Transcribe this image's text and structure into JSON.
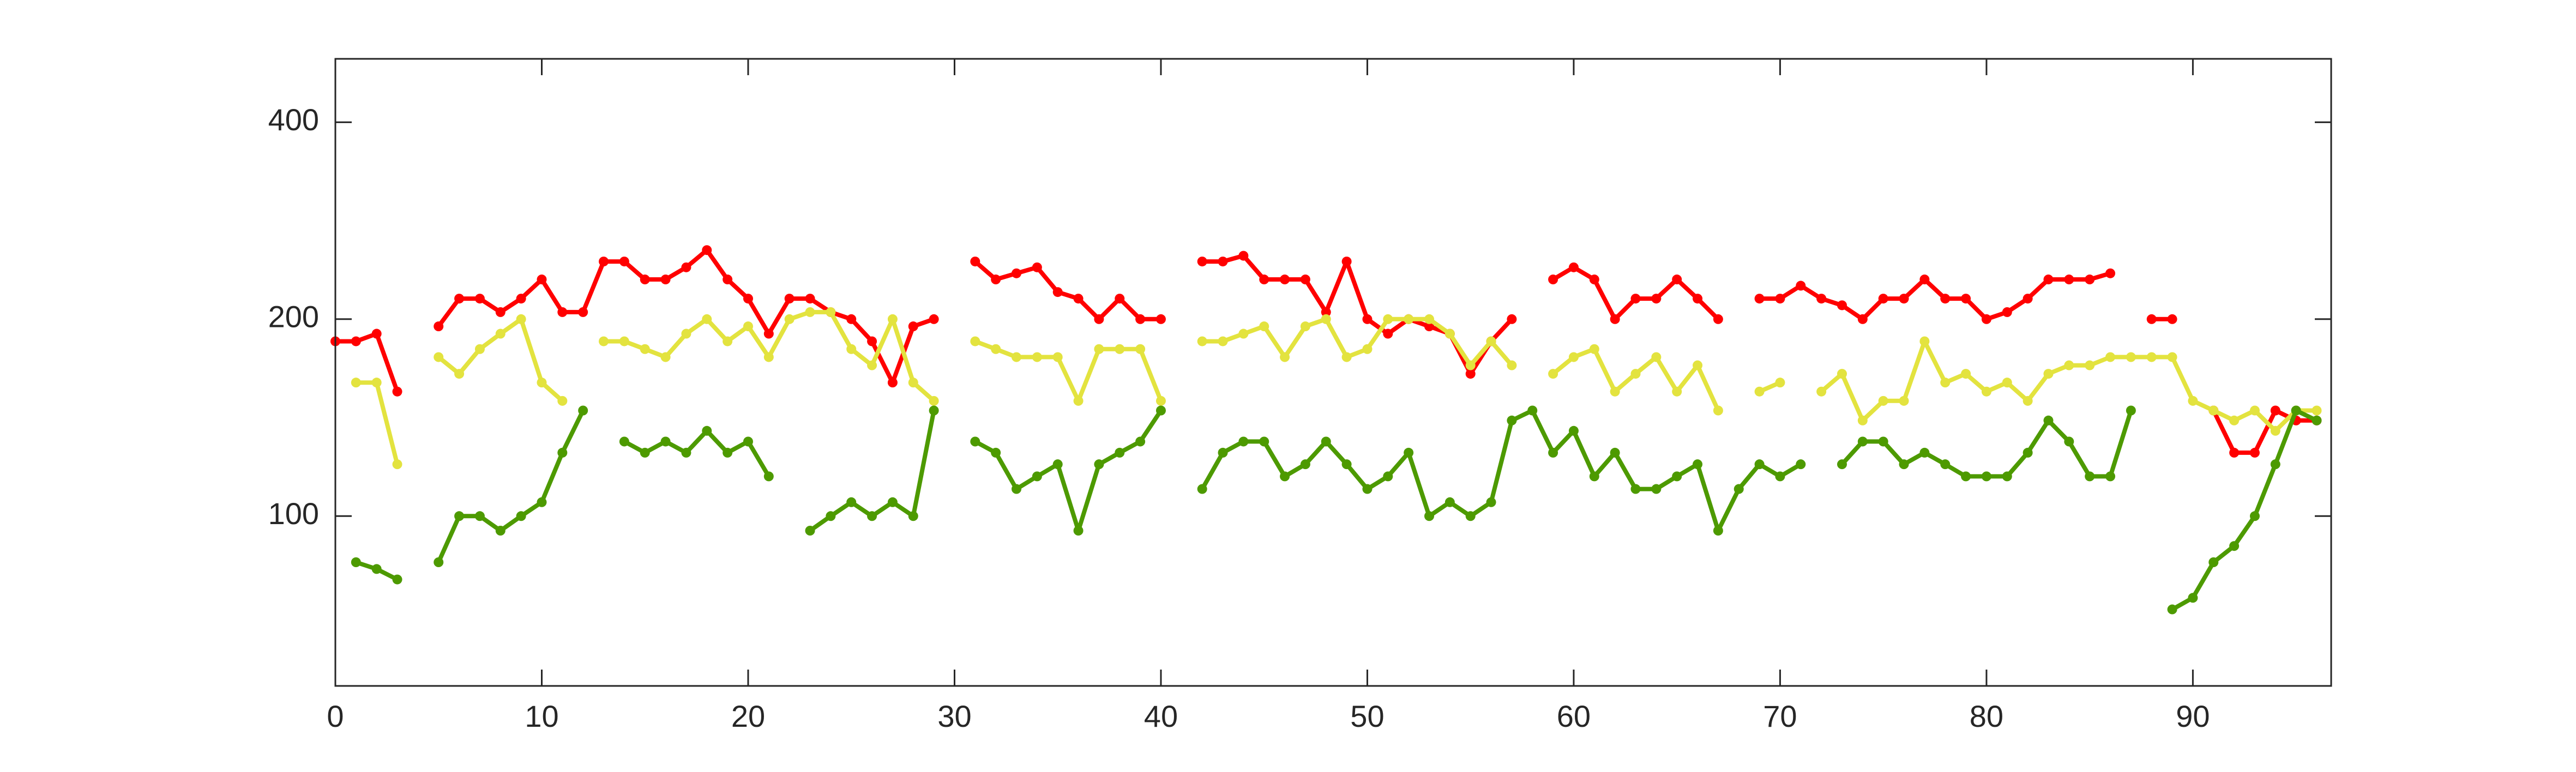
{
  "chart_data": {
    "type": "line",
    "x": [
      0,
      1,
      2,
      3,
      4,
      5,
      6,
      7,
      8,
      9,
      10,
      11,
      12,
      13,
      14,
      15,
      16,
      17,
      18,
      19,
      20,
      21,
      22,
      23,
      24,
      25,
      26,
      27,
      28,
      29,
      30,
      31,
      32,
      33,
      34,
      35,
      36,
      37,
      38,
      39,
      40,
      41,
      42,
      43,
      44,
      45,
      46,
      47,
      48,
      49,
      50,
      51,
      52,
      53,
      54,
      55,
      56,
      57,
      58,
      59,
      60,
      61,
      62,
      63,
      64,
      65,
      66,
      67,
      68,
      69,
      70,
      71,
      72,
      73,
      74,
      75,
      76,
      77,
      78,
      79,
      80,
      81,
      82,
      83,
      84,
      85,
      86,
      87,
      88,
      89,
      90,
      91,
      92,
      93,
      94,
      95,
      96
    ],
    "series": [
      {
        "color": "#ff0000",
        "values": [
          185,
          185,
          190,
          155,
          null,
          195,
          215,
          215,
          205,
          215,
          230,
          205,
          205,
          245,
          245,
          230,
          230,
          240,
          255,
          230,
          215,
          190,
          215,
          215,
          205,
          200,
          185,
          160,
          195,
          200,
          null,
          245,
          230,
          235,
          240,
          220,
          215,
          200,
          215,
          200,
          200,
          null,
          245,
          245,
          250,
          230,
          230,
          230,
          205,
          245,
          200,
          190,
          200,
          195,
          190,
          165,
          185,
          200,
          null,
          230,
          240,
          230,
          200,
          215,
          215,
          230,
          215,
          200,
          null,
          215,
          215,
          225,
          215,
          210,
          200,
          215,
          215,
          230,
          215,
          215,
          200,
          205,
          215,
          230,
          230,
          230,
          235,
          null,
          200,
          200,
          null,
          145,
          125,
          125,
          145,
          140,
          140
        ]
      },
      {
        "color": "#e3e33f",
        "values": [
          null,
          160,
          160,
          120,
          null,
          175,
          165,
          180,
          190,
          200,
          160,
          150,
          null,
          185,
          185,
          180,
          175,
          190,
          200,
          185,
          195,
          175,
          200,
          205,
          205,
          180,
          170,
          200,
          160,
          150,
          null,
          185,
          180,
          175,
          175,
          175,
          150,
          180,
          180,
          180,
          150,
          null,
          185,
          185,
          190,
          195,
          175,
          195,
          200,
          175,
          180,
          200,
          200,
          200,
          190,
          170,
          185,
          170,
          null,
          165,
          175,
          180,
          155,
          165,
          175,
          155,
          170,
          145,
          null,
          155,
          160,
          null,
          155,
          165,
          140,
          150,
          150,
          185,
          160,
          165,
          155,
          160,
          150,
          165,
          170,
          170,
          175,
          175,
          175,
          175,
          150,
          145,
          140,
          145,
          135,
          145,
          145
        ]
      },
      {
        "color": "#4d9a00",
        "values": [
          null,
          85,
          83,
          80,
          null,
          85,
          100,
          100,
          95,
          100,
          105,
          125,
          145,
          null,
          130,
          125,
          130,
          125,
          135,
          125,
          130,
          115,
          null,
          95,
          100,
          105,
          100,
          105,
          100,
          145,
          null,
          130,
          125,
          110,
          115,
          120,
          95,
          120,
          125,
          130,
          145,
          null,
          110,
          125,
          130,
          130,
          115,
          120,
          130,
          120,
          110,
          115,
          125,
          100,
          105,
          100,
          105,
          140,
          145,
          125,
          135,
          115,
          125,
          110,
          110,
          115,
          120,
          95,
          110,
          120,
          115,
          120,
          null,
          120,
          130,
          130,
          120,
          125,
          120,
          115,
          115,
          115,
          125,
          140,
          130,
          115,
          115,
          145,
          null,
          72,
          75,
          85,
          90,
          100,
          120,
          145,
          140
        ]
      }
    ],
    "xlim": [
      0,
      96.7
    ],
    "xticks": [
      0,
      10,
      20,
      30,
      40,
      50,
      60,
      70,
      80,
      90
    ],
    "ylim": [
      55,
      500
    ],
    "yticks": [
      100,
      200,
      400
    ],
    "yscale": "log"
  }
}
